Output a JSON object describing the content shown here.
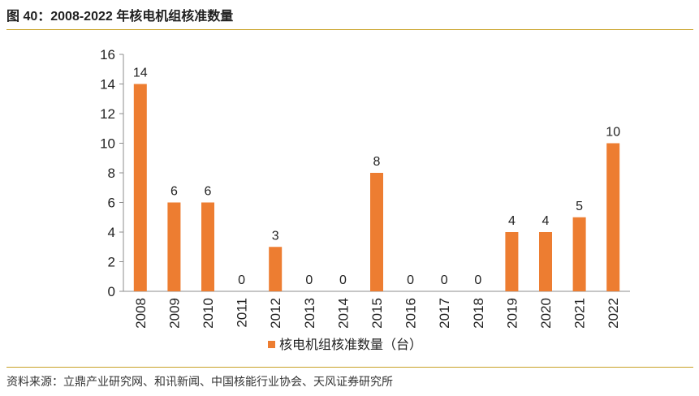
{
  "header": {
    "title": "图 40：2008-2022 年核电机组核准数量"
  },
  "footer": {
    "source": "资料来源：立鼎产业研究网、和讯新闻、中国核能行业协会、天风证券研究所"
  },
  "chart_data": {
    "type": "bar",
    "categories": [
      "2008",
      "2009",
      "2010",
      "2011",
      "2012",
      "2013",
      "2014",
      "2015",
      "2016",
      "2017",
      "2018",
      "2019",
      "2020",
      "2021",
      "2022"
    ],
    "series": [
      {
        "name": "核电机组核准数量（台）",
        "values": [
          14,
          6,
          6,
          0,
          3,
          0,
          0,
          8,
          0,
          0,
          0,
          4,
          4,
          5,
          10
        ],
        "color": "#ED7D31"
      }
    ],
    "title": "",
    "xlabel": "",
    "ylabel": "",
    "ylim": [
      0,
      16
    ],
    "yticks": [
      0,
      2,
      4,
      6,
      8,
      10,
      12,
      14,
      16
    ],
    "legend": "bottom",
    "grid": false,
    "data_labels": true
  }
}
